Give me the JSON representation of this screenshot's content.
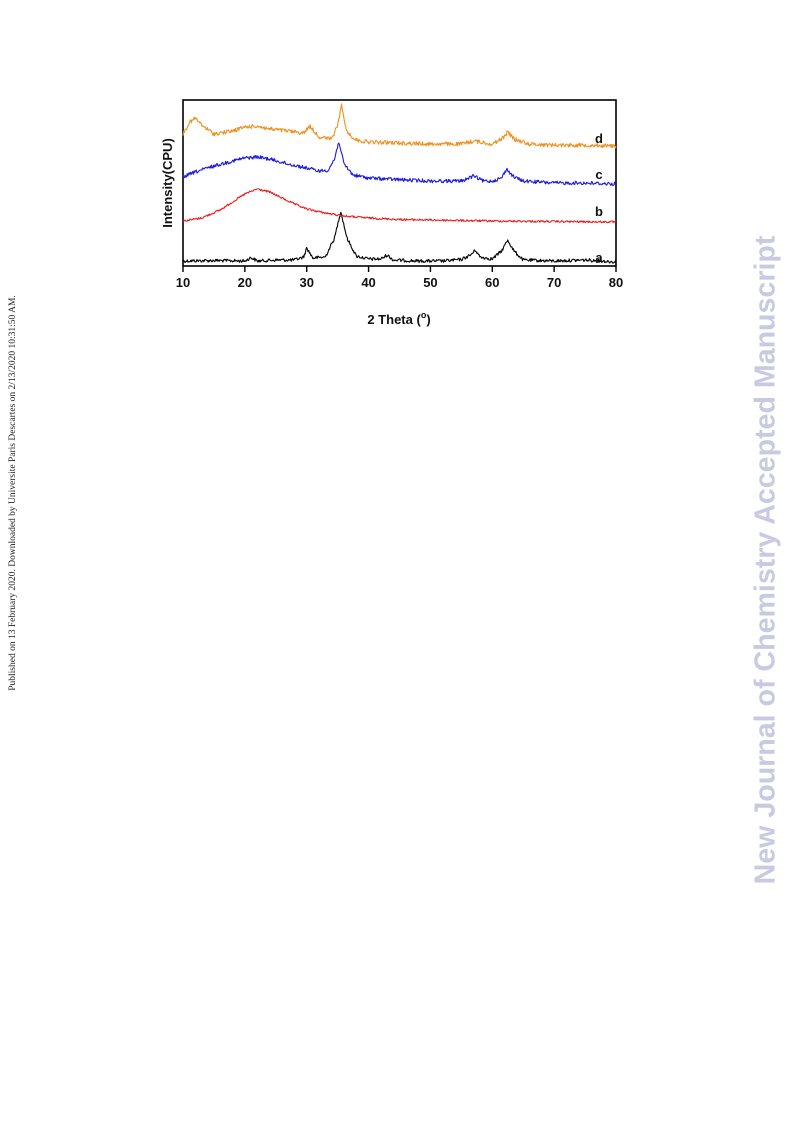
{
  "sidebar_note": "Published on 13 February 2020. Downloaded by Universite Paris Descartes on 2/13/2020 10:31:50 AM.",
  "watermark": "New Journal of Chemistry Accepted Manuscript",
  "colors": {
    "a": "#000000",
    "b": "#e8201f",
    "c": "#1a1ae0",
    "d": "#f0901e"
  },
  "chart_data": {
    "type": "line",
    "title": "",
    "xlabel": "2 Theta (",
    "xlabel_sup": "o",
    "xlabel_end": ")",
    "ylabel": "Intensity(CPU)",
    "xlim": [
      10,
      80
    ],
    "xticks": [
      "10",
      "20",
      "30",
      "40",
      "50",
      "60",
      "70",
      "80"
    ],
    "yticks_shown": false,
    "grid": false,
    "legend": "curve labels at right end",
    "series": [
      {
        "name": "a",
        "x": [
          10,
          15,
          20,
          21,
          22,
          25,
          28,
          29.5,
          30,
          31,
          33,
          34.5,
          35.5,
          36.5,
          38,
          40,
          42,
          43,
          44,
          48,
          52,
          55,
          56.5,
          57.3,
          58,
          60,
          61.5,
          62.5,
          63.5,
          65,
          70,
          75,
          80
        ],
        "y": [
          0.2,
          0.25,
          0.2,
          0.55,
          0.2,
          0.3,
          0.3,
          0.6,
          1.5,
          0.5,
          0.6,
          2.5,
          5.2,
          2.5,
          0.7,
          0.4,
          0.4,
          0.8,
          0.3,
          0.2,
          0.2,
          0.35,
          0.8,
          1.3,
          0.6,
          0.4,
          1.2,
          2.3,
          1.2,
          0.3,
          0.2,
          0.3,
          0.1
        ]
      },
      {
        "name": "b",
        "x": [
          10,
          13,
          16,
          18,
          20,
          22,
          24,
          26,
          28,
          30,
          33,
          36,
          40,
          45,
          50,
          60,
          70,
          80
        ],
        "y": [
          0.2,
          0.5,
          1.3,
          2.1,
          2.9,
          3.4,
          3.1,
          2.5,
          1.9,
          1.4,
          1.0,
          0.7,
          0.5,
          0.35,
          0.3,
          0.2,
          0.15,
          0.1
        ]
      },
      {
        "name": "c",
        "x": [
          10,
          12,
          15,
          18,
          20,
          22,
          24,
          27,
          30,
          32,
          33.5,
          34.5,
          35.2,
          36,
          37.5,
          40,
          43,
          46,
          50,
          55,
          57,
          58.5,
          60,
          61.5,
          62.3,
          63.5,
          65,
          70,
          75,
          80
        ],
        "y": [
          1.0,
          1.5,
          2.1,
          2.6,
          2.9,
          3.0,
          2.8,
          2.3,
          1.9,
          1.6,
          1.7,
          2.8,
          4.6,
          2.3,
          1.2,
          0.9,
          0.8,
          0.7,
          0.6,
          0.6,
          1.1,
          0.6,
          0.6,
          0.9,
          1.8,
          1.0,
          0.6,
          0.4,
          0.4,
          0.3
        ]
      },
      {
        "name": "d",
        "x": [
          10,
          11,
          12,
          13,
          15,
          18,
          20,
          22,
          24,
          27,
          29.5,
          30.5,
          32,
          34,
          35,
          35.6,
          36.5,
          38,
          40,
          45,
          50,
          55,
          57,
          60,
          61.5,
          62.5,
          63.5,
          66,
          70,
          75,
          80
        ],
        "y": [
          1.6,
          2.7,
          3.2,
          2.5,
          1.6,
          1.9,
          2.3,
          2.4,
          2.1,
          1.9,
          1.7,
          2.4,
          1.3,
          1.1,
          2.4,
          4.5,
          1.8,
          1.0,
          0.8,
          0.7,
          0.6,
          0.6,
          0.9,
          0.6,
          1.1,
          1.8,
          1.1,
          0.6,
          0.5,
          0.5,
          0.4
        ]
      }
    ]
  }
}
